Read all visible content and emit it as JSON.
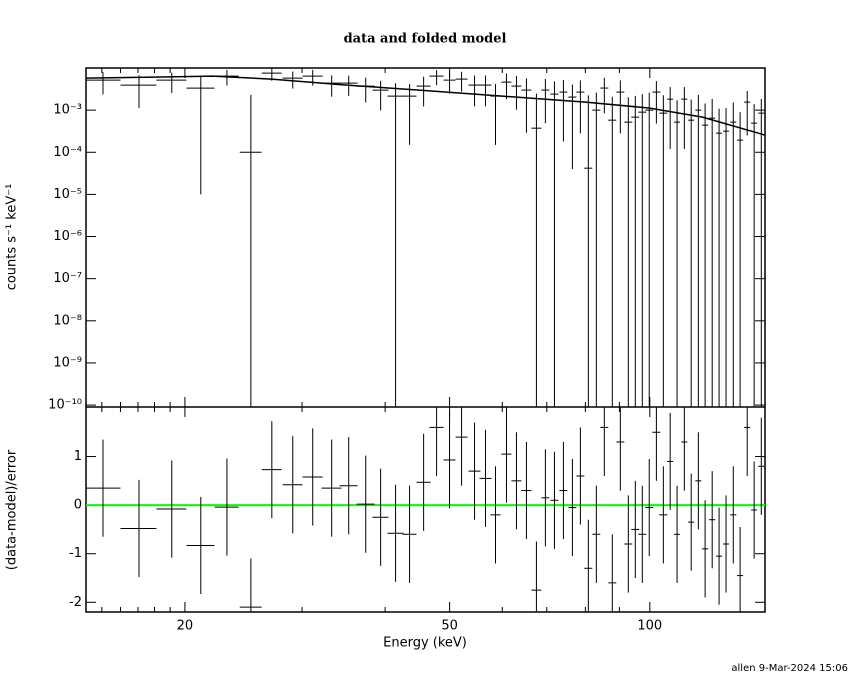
{
  "footer": "allen  9-Mar-2024 15:06",
  "chart_data": [
    {
      "type": "scatter",
      "title": "data and folded model",
      "y_label": "counts s⁻¹ keV⁻¹",
      "log_x": true,
      "log_y": true,
      "xlim": [
        14.2,
        149
      ],
      "xticks": [
        20,
        50,
        100
      ],
      "xminor_ticks": [
        15,
        16,
        17,
        18,
        19,
        30,
        40,
        60,
        70,
        80,
        90
      ],
      "ylim": [
        9e-11,
        0.01
      ],
      "yticks": [
        {
          "value": 0.001,
          "label": "10⁻³"
        },
        {
          "value": 0.0001,
          "label": "10⁻⁴"
        },
        {
          "value": 1e-05,
          "label": "10⁻⁵"
        },
        {
          "value": 1e-06,
          "label": "10⁻⁶"
        },
        {
          "value": 1e-07,
          "label": "10⁻⁷"
        },
        {
          "value": 1e-08,
          "label": "10⁻⁸"
        },
        {
          "value": 1e-09,
          "label": "10⁻⁹"
        },
        {
          "value": 1e-10,
          "label": "10⁻¹⁰"
        }
      ],
      "series": [
        {
          "type": "errorbar",
          "color": "#000000",
          "x": [
            15.06,
            17.06,
            19.11,
            21.13,
            23.13,
            25.13,
            27.02,
            29.05,
            31.13,
            33.24,
            35.26,
            37.4,
            39.38,
            41.47,
            43.53,
            45.7,
            47.8,
            49.99,
            52.12,
            54.51,
            56.62,
            58.61,
            60.88,
            63.02,
            65.24,
            67.53,
            69.66,
            71.88,
            74.15,
            76.49,
            78.63,
            80.83,
            83.1,
            85.43,
            87.82,
            90.3,
            92.83,
            95.1,
            97.43,
            99.8,
            102.3,
            104.8,
            107.3,
            109.9,
            112.7,
            115.4,
            118.3,
            121.1,
            124.1,
            127.1,
            130.2,
            133.5,
            136.7,
            140.1,
            143.5,
            147.1
          ],
          "xerr": [
            0.94,
            1.06,
            0.99,
            1.02,
            0.96,
            0.95,
            0.93,
            1.0,
            1.08,
            1.15,
            1.1,
            1.16,
            1.09,
            1.15,
            1.05,
            1.11,
            1.16,
            1.03,
            1.08,
            1.13,
            1.17,
            1.01,
            1.05,
            1.09,
            1.13,
            1.17,
            0.96,
            0.99,
            1.02,
            1.06,
            1.09,
            1.12,
            1.15,
            1.18,
            1.21,
            1.25,
            1.28,
            1.31,
            1.34,
            1.38,
            1.41,
            1.45,
            1.12,
            1.14,
            1.17,
            1.2,
            1.23,
            1.26,
            1.29,
            1.32,
            1.35,
            1.39,
            1.42,
            1.46,
            1.49,
            1.53
          ],
          "values": [
            0.00516,
            0.00393,
            0.00516,
            0.00334,
            0.00643,
            0.0001,
            0.00757,
            0.00575,
            0.00643,
            0.00438,
            0.00438,
            0.00372,
            0.00299,
            0.00215,
            0.00215,
            0.00372,
            0.00643,
            0.00516,
            0.00545,
            0.00393,
            0.00393,
            0.00215,
            0.00462,
            0.00372,
            0.00299,
            0.000373,
            0.00299,
            0.0024,
            0.00268,
            0.00204,
            0.00268,
            4.19e-05,
            0.001,
            0.00334,
            0.000578,
            0.00268,
            0.000519,
            0.000682,
            0.000896,
            0.001,
            0.00268,
            0.000849,
            0.00182,
            0.000519,
            0.00182,
            0.000578,
            0.001,
            0.00044,
            0.000646,
            0.000284,
            0.000317,
            0.000519,
            0.000194,
            0.00155,
            0.000491,
            0.000849
          ],
          "yerr": [
            0.0028,
            0.0028,
            0.0026,
            0.00333,
            0.0026,
            0.0022,
            0.0026,
            0.0025,
            0.0026,
            0.0023,
            0.0022,
            0.0022,
            0.002,
            0.0022,
            0.002,
            0.0025,
            0.0025,
            0.0027,
            0.0027,
            0.0027,
            0.0027,
            0.002,
            0.0028,
            0.0027,
            0.0027,
            0.0021,
            0.0025,
            0.0024,
            0.0025,
            0.002,
            0.0024,
            0.0022,
            0.0016,
            0.0025,
            0.0015,
            0.0024,
            0.0015,
            0.0015,
            0.0015,
            0.0016,
            0.0022,
            0.0014,
            0.0017,
            0.0012,
            0.0017,
            0.0012,
            0.0013,
            0.001,
            0.0012,
            0.0008,
            0.0008,
            0.001,
            0.0007,
            0.0013,
            0.0009,
            0.001
          ]
        },
        {
          "type": "line",
          "color": "#000000",
          "x": [
            14.2,
            18,
            22,
            27,
            35,
            45,
            60,
            80,
            100,
            120,
            149
          ],
          "values": [
            0.00575,
            0.00608,
            0.00643,
            0.00545,
            0.00393,
            0.00299,
            0.00215,
            0.00155,
            0.00112,
            0.000682,
            0.000255
          ]
        }
      ]
    },
    {
      "type": "scatter",
      "y_label": "(data-model)/error",
      "x_label": "Energy (keV)",
      "log_x": true,
      "xlim": [
        14.2,
        149
      ],
      "xticks": [
        20,
        50,
        100
      ],
      "xminor_ticks": [
        15,
        16,
        17,
        18,
        19,
        30,
        40,
        60,
        70,
        80,
        90
      ],
      "ylim": [
        -2.2,
        2.02
      ],
      "yticks": [
        -2,
        -1,
        0,
        1
      ],
      "reference_line": {
        "value": 0,
        "color": "#00ff00"
      },
      "series": [
        {
          "type": "errorbar",
          "color": "#000000",
          "x": [
            15.06,
            17.06,
            19.11,
            21.13,
            23.13,
            25.13,
            27.02,
            29.05,
            31.13,
            33.24,
            35.26,
            37.4,
            39.38,
            41.47,
            43.53,
            45.7,
            47.8,
            49.99,
            52.12,
            54.51,
            56.62,
            58.61,
            60.88,
            63.02,
            65.24,
            67.53,
            69.66,
            71.88,
            74.15,
            76.49,
            78.63,
            80.83,
            83.1,
            85.43,
            87.82,
            90.3,
            92.83,
            95.1,
            97.43,
            99.8,
            102.3,
            104.8,
            107.3,
            109.9,
            112.7,
            115.4,
            118.3,
            121.1,
            124.1,
            127.1,
            130.2,
            133.5,
            136.7,
            140.1,
            143.5,
            147.1
          ],
          "xerr": [
            0.94,
            1.06,
            0.99,
            1.02,
            0.96,
            0.95,
            0.93,
            1.0,
            1.08,
            1.15,
            1.1,
            1.16,
            1.09,
            1.15,
            1.05,
            1.11,
            1.16,
            1.03,
            1.08,
            1.13,
            1.17,
            1.01,
            1.05,
            1.09,
            1.13,
            1.17,
            0.96,
            0.99,
            1.02,
            1.06,
            1.09,
            1.12,
            1.15,
            1.18,
            1.21,
            1.25,
            1.28,
            1.31,
            1.34,
            1.38,
            1.41,
            1.45,
            1.12,
            1.14,
            1.17,
            1.2,
            1.23,
            1.26,
            1.29,
            1.32,
            1.35,
            1.39,
            1.42,
            1.46,
            1.49,
            1.53
          ],
          "values": [
            0.35,
            -0.48,
            -0.08,
            -0.83,
            -0.04,
            -2.1,
            0.73,
            0.42,
            0.58,
            0.35,
            0.4,
            0.02,
            -0.25,
            -0.58,
            -0.6,
            0.47,
            1.6,
            0.93,
            1.4,
            0.7,
            0.55,
            -0.2,
            1.05,
            0.5,
            0.3,
            -1.75,
            0.15,
            0.1,
            0.3,
            -0.05,
            0.6,
            -1.3,
            -0.6,
            1.6,
            -1.6,
            1.3,
            -0.8,
            -0.5,
            -0.6,
            -0.05,
            1.5,
            -0.2,
            0.9,
            -0.6,
            1.3,
            -0.35,
            0.5,
            -0.9,
            -0.3,
            -1.05,
            -0.8,
            -0.2,
            -1.45,
            1.6,
            -0.1,
            0.8
          ],
          "yerr": [
            1,
            1,
            1,
            1,
            1,
            1,
            1,
            1,
            1,
            1,
            1,
            1,
            1,
            1,
            1,
            1,
            1,
            1,
            1,
            1,
            1,
            1,
            1,
            1,
            1,
            1,
            1,
            1,
            1,
            1,
            1,
            1,
            1,
            1,
            1,
            1,
            1,
            1,
            1,
            1,
            1,
            1,
            1,
            1,
            1,
            1,
            1,
            1,
            1,
            1,
            1,
            1,
            1,
            1,
            1,
            1
          ]
        }
      ]
    }
  ]
}
